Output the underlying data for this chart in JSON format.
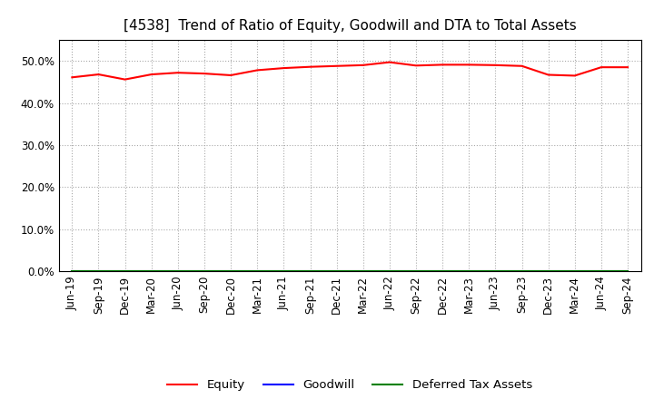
{
  "title": "[4538]  Trend of Ratio of Equity, Goodwill and DTA to Total Assets",
  "x_labels": [
    "Jun-19",
    "Sep-19",
    "Dec-19",
    "Mar-20",
    "Jun-20",
    "Sep-20",
    "Dec-20",
    "Mar-21",
    "Jun-21",
    "Sep-21",
    "Dec-21",
    "Mar-22",
    "Jun-22",
    "Sep-22",
    "Dec-22",
    "Mar-23",
    "Jun-23",
    "Sep-23",
    "Dec-23",
    "Mar-24",
    "Jun-24",
    "Sep-24"
  ],
  "equity": [
    46.1,
    46.8,
    45.6,
    46.8,
    47.2,
    47.0,
    46.6,
    47.8,
    48.3,
    48.6,
    48.8,
    49.0,
    49.7,
    48.9,
    49.1,
    49.1,
    49.0,
    48.8,
    46.7,
    46.5,
    48.5,
    48.5
  ],
  "goodwill": [
    0,
    0,
    0,
    0,
    0,
    0,
    0,
    0,
    0,
    0,
    0,
    0,
    0,
    0,
    0,
    0,
    0,
    0,
    0,
    0,
    0,
    0
  ],
  "dta": [
    0,
    0,
    0,
    0,
    0,
    0,
    0,
    0,
    0,
    0,
    0,
    0,
    0,
    0,
    0,
    0,
    0,
    0,
    0,
    0,
    0,
    0
  ],
  "equity_color": "#FF0000",
  "goodwill_color": "#0000FF",
  "dta_color": "#008000",
  "ylim": [
    0,
    55
  ],
  "yticks": [
    0,
    10,
    20,
    30,
    40,
    50
  ],
  "background_color": "#FFFFFF",
  "grid_color": "#AAAAAA",
  "legend_labels": [
    "Equity",
    "Goodwill",
    "Deferred Tax Assets"
  ],
  "title_fontsize": 11,
  "tick_fontsize": 8.5
}
